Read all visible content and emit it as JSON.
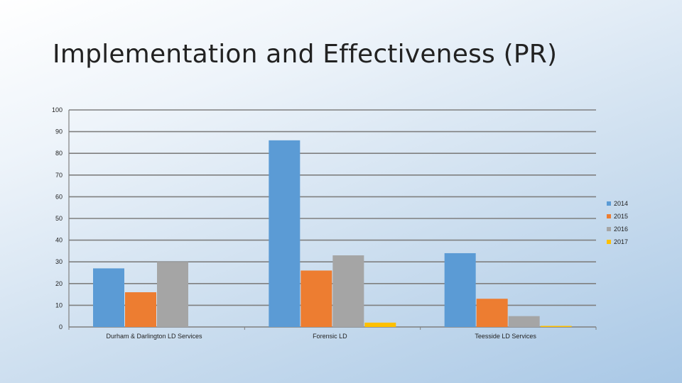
{
  "slide": {
    "title": "Implementation and Effectiveness (PR)"
  },
  "chart_data": {
    "type": "bar",
    "categories": [
      "Durham & Darlington LD Services",
      "Forensic LD",
      "Teesside LD Services"
    ],
    "series": [
      {
        "name": "2014",
        "color": "#5b9bd5",
        "values": [
          27,
          86,
          34
        ]
      },
      {
        "name": "2015",
        "color": "#ed7d31",
        "values": [
          16,
          26,
          13
        ]
      },
      {
        "name": "2016",
        "color": "#a5a5a5",
        "values": [
          30,
          33,
          5
        ]
      },
      {
        "name": "2017",
        "color": "#ffc000",
        "values": [
          0,
          2,
          0.5
        ]
      }
    ],
    "ylim": [
      0,
      100
    ],
    "yticks": [
      0,
      10,
      20,
      30,
      40,
      50,
      60,
      70,
      80,
      90,
      100
    ],
    "grid": true,
    "legend_position": "right"
  }
}
